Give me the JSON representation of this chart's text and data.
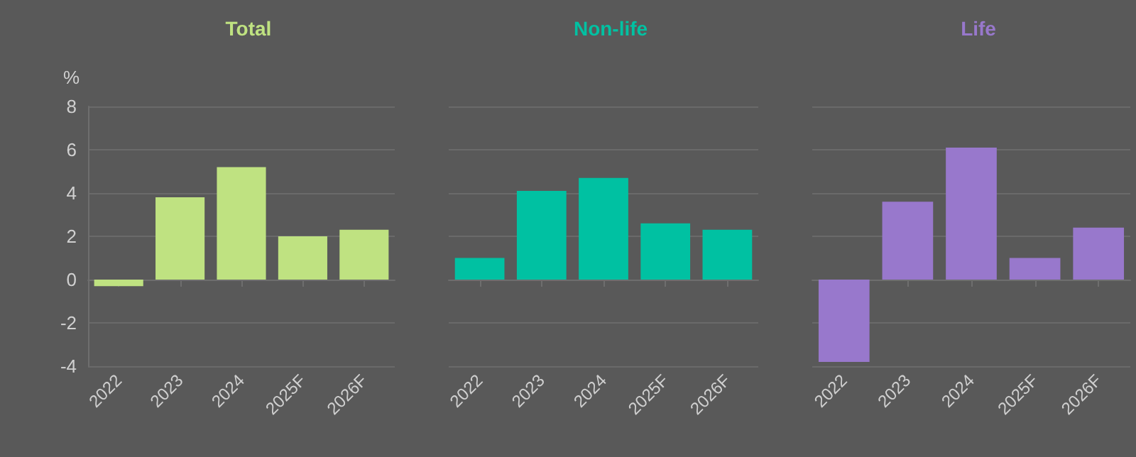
{
  "chart_data": [
    {
      "type": "bar",
      "title": "Total",
      "ylabel": "%",
      "categories": [
        "2022",
        "2023",
        "2024",
        "2025F",
        "2026F"
      ],
      "values": [
        -0.3,
        3.8,
        5.2,
        2.0,
        2.3
      ],
      "color": "#bfe281",
      "ylim": [
        -4,
        8
      ],
      "yticks": [
        -4,
        -2,
        0,
        2,
        4,
        6,
        8
      ],
      "grid": "y"
    },
    {
      "type": "bar",
      "title": "Non-life",
      "categories": [
        "2022",
        "2023",
        "2024",
        "2025F",
        "2026F"
      ],
      "values": [
        1.0,
        4.1,
        4.7,
        2.6,
        2.3
      ],
      "color": "#00c1a2",
      "ylim": [
        -4,
        8
      ],
      "yticks": [
        -4,
        -2,
        0,
        2,
        4,
        6,
        8
      ],
      "grid": "y",
      "tick_labels": "x"
    },
    {
      "type": "bar",
      "title": "Life",
      "categories": [
        "2022",
        "2023",
        "2024",
        "2025F",
        "2026F"
      ],
      "values": [
        -3.8,
        3.6,
        6.1,
        1.0,
        2.4
      ],
      "color": "#9878cc",
      "ylim": [
        -4,
        8
      ],
      "yticks": [
        -4,
        -2,
        0,
        2,
        4,
        6,
        8
      ],
      "grid": "y",
      "tick_labels": "x"
    }
  ]
}
